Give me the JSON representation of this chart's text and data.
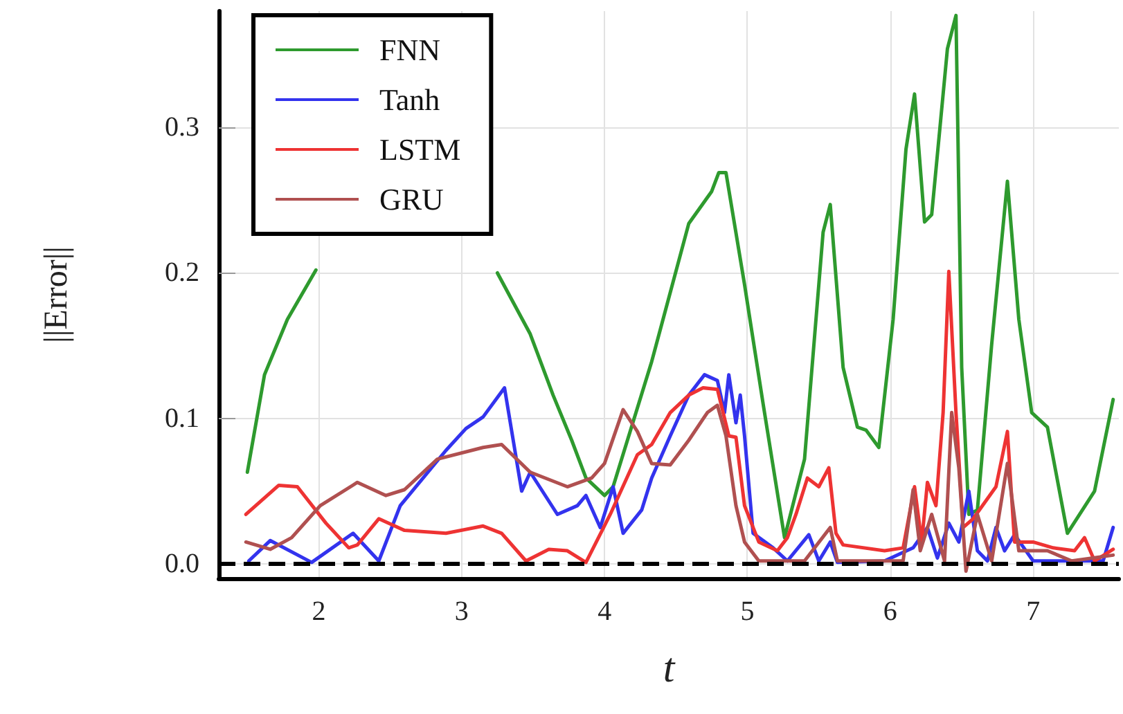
{
  "chart_data": {
    "type": "line",
    "xlabel": "t",
    "ylabel": "||Error||",
    "xlim": [
      1.3,
      7.6
    ],
    "xticks": [
      2,
      3,
      4,
      5,
      6,
      7
    ],
    "ylim": [
      -0.01,
      0.38
    ],
    "yticks": [
      {
        "value": 0,
        "label": "0.0"
      },
      0.1,
      0.2,
      0.3
    ],
    "grid": true,
    "legend": "top left",
    "marker": "none",
    "line_style": "solid",
    "ref_lines": [
      {
        "axis": "y",
        "value": 0,
        "label": null,
        "color": "#000000",
        "line_style": "dashed"
      }
    ],
    "series": [
      {
        "name": "FNN",
        "color": "#2e9a2e",
        "x": [
          1.5,
          1.62,
          1.78,
          1.98,
          2.2,
          3.2,
          3.25,
          3.48,
          3.64,
          3.77,
          3.87,
          4.0,
          4.06,
          4.33,
          4.59,
          4.75,
          4.8,
          4.85,
          4.98,
          5.11,
          5.26,
          5.4,
          5.53,
          5.58,
          5.67,
          5.77,
          5.83,
          5.92,
          6.02,
          6.11,
          6.17,
          6.24,
          6.29,
          6.4,
          6.46,
          6.5,
          6.55,
          6.61,
          6.71,
          6.82,
          6.9,
          6.99,
          7.1,
          7.24,
          7.43,
          7.56
        ],
        "values": [
          0.063,
          0.13,
          0.168,
          0.202,
          null,
          null,
          0.2,
          0.158,
          0.116,
          0.085,
          0.059,
          0.047,
          0.053,
          0.139,
          0.234,
          0.256,
          0.269,
          0.269,
          0.192,
          0.11,
          0.018,
          0.072,
          0.228,
          0.247,
          0.135,
          0.094,
          0.092,
          0.08,
          0.168,
          0.285,
          0.323,
          0.235,
          0.24,
          0.354,
          0.377,
          0.135,
          0.034,
          0.037,
          0.151,
          0.263,
          0.168,
          0.104,
          0.094,
          0.021,
          0.05,
          0.113
        ]
      },
      {
        "name": "Tanh",
        "color": "#3333ee",
        "x": [
          1.51,
          1.66,
          1.95,
          2.24,
          2.42,
          2.57,
          2.89,
          3.03,
          3.15,
          3.3,
          3.42,
          3.48,
          3.67,
          3.81,
          3.87,
          3.97,
          4.06,
          4.13,
          4.26,
          4.33,
          4.46,
          4.59,
          4.7,
          4.79,
          4.84,
          4.87,
          4.92,
          4.95,
          4.98,
          5.04,
          5.18,
          5.28,
          5.43,
          5.5,
          5.58,
          5.63,
          5.96,
          6.16,
          6.26,
          6.33,
          6.41,
          6.48,
          6.55,
          6.61,
          6.68,
          6.74,
          6.8,
          6.87,
          7.0,
          7.49,
          7.56
        ],
        "values": [
          0.002,
          0.016,
          0.001,
          0.021,
          0.002,
          0.04,
          0.078,
          0.093,
          0.101,
          0.121,
          0.05,
          0.063,
          0.034,
          0.04,
          0.047,
          0.025,
          0.053,
          0.021,
          0.037,
          0.059,
          0.088,
          0.116,
          0.13,
          0.126,
          0.104,
          0.13,
          0.097,
          0.116,
          0.088,
          0.021,
          0.011,
          0.002,
          0.02,
          0.002,
          0.015,
          0.001,
          0.002,
          0.011,
          0.025,
          0.004,
          0.028,
          0.015,
          0.05,
          0.009,
          0.002,
          0.025,
          0.009,
          0.02,
          0.002,
          0.002,
          0.025
        ]
      },
      {
        "name": "LSTM",
        "color": "#ee3333",
        "x": [
          1.49,
          1.72,
          1.85,
          2.05,
          2.21,
          2.27,
          2.42,
          2.6,
          2.89,
          3.15,
          3.28,
          3.45,
          3.61,
          3.74,
          3.87,
          4.04,
          4.23,
          4.33,
          4.46,
          4.59,
          4.69,
          4.79,
          4.87,
          4.92,
          4.98,
          5.08,
          5.21,
          5.28,
          5.34,
          5.42,
          5.5,
          5.57,
          5.62,
          5.67,
          5.96,
          6.09,
          6.17,
          6.22,
          6.26,
          6.32,
          6.37,
          6.41,
          6.46,
          6.51,
          6.58,
          6.74,
          6.82,
          6.87,
          7.0,
          7.14,
          7.29,
          7.36,
          7.43,
          7.56
        ],
        "values": [
          0.034,
          0.054,
          0.053,
          0.028,
          0.011,
          0.013,
          0.031,
          0.023,
          0.021,
          0.026,
          0.021,
          0.002,
          0.01,
          0.009,
          0.001,
          0.034,
          0.075,
          0.082,
          0.104,
          0.116,
          0.121,
          0.12,
          0.088,
          0.087,
          0.04,
          0.015,
          0.009,
          0.018,
          0.034,
          0.059,
          0.053,
          0.066,
          0.021,
          0.013,
          0.009,
          0.011,
          0.053,
          0.015,
          0.056,
          0.04,
          0.104,
          0.201,
          0.104,
          0.025,
          0.031,
          0.053,
          0.091,
          0.015,
          0.015,
          0.011,
          0.009,
          0.018,
          0.002,
          0.01
        ]
      },
      {
        "name": "GRU",
        "color": "#b05050",
        "x": [
          1.49,
          1.66,
          1.81,
          2.01,
          2.27,
          2.47,
          2.6,
          2.83,
          3.15,
          3.28,
          3.48,
          3.74,
          3.91,
          4.0,
          4.13,
          4.23,
          4.33,
          4.46,
          4.59,
          4.72,
          4.79,
          4.85,
          4.92,
          4.98,
          5.08,
          5.4,
          5.58,
          5.63,
          6.09,
          6.16,
          6.21,
          6.29,
          6.38,
          6.43,
          6.48,
          6.53,
          6.61,
          6.71,
          6.82,
          6.9,
          7.1,
          7.27,
          7.56
        ],
        "values": [
          0.015,
          0.01,
          0.018,
          0.04,
          0.056,
          0.047,
          0.051,
          0.072,
          0.08,
          0.082,
          0.063,
          0.053,
          0.059,
          0.069,
          0.106,
          0.091,
          0.069,
          0.068,
          0.085,
          0.104,
          0.109,
          0.088,
          0.04,
          0.015,
          0.002,
          0.002,
          0.025,
          0.002,
          0.002,
          0.051,
          0.009,
          0.034,
          0.002,
          0.104,
          0.066,
          -0.005,
          0.034,
          0.002,
          0.069,
          0.009,
          0.009,
          0.002,
          0.006
        ]
      }
    ]
  }
}
